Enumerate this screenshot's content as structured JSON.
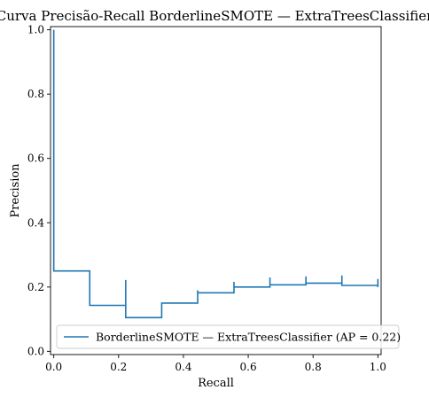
{
  "chart_data": {
    "type": "line",
    "title": "Curva Precisão-Recall BorderlineSMOTE — ExtraTreesClassifier",
    "xlabel": "Recall",
    "ylabel": "Precision",
    "xlim": [
      0.0,
      1.0
    ],
    "ylim": [
      0.0,
      1.0
    ],
    "xticks": [
      0.0,
      0.2,
      0.4,
      0.6,
      0.8,
      1.0
    ],
    "yticks": [
      0.0,
      0.2,
      0.4,
      0.6,
      0.8,
      1.0
    ],
    "grid": false,
    "legend_position": "lower-right",
    "series": [
      {
        "name": "BorderlineSMOTE — ExtraTreesClassifier (AP = 0.22)",
        "color": "#1f77b4",
        "drawstyle": "steps-post",
        "recall": [
          0.0,
          0.0,
          0.111,
          0.111,
          0.222,
          0.222,
          0.333,
          0.333,
          0.444,
          0.444,
          0.556,
          0.556,
          0.667,
          0.667,
          0.778,
          0.778,
          0.889,
          0.889,
          1.0,
          1.0
        ],
        "precision": [
          1.0,
          0.25,
          0.25,
          0.143,
          0.222,
          0.105,
          0.15,
          0.15,
          0.19,
          0.182,
          0.216,
          0.2,
          0.23,
          0.207,
          0.233,
          0.212,
          0.236,
          0.205,
          0.225,
          0.2
        ]
      }
    ]
  }
}
